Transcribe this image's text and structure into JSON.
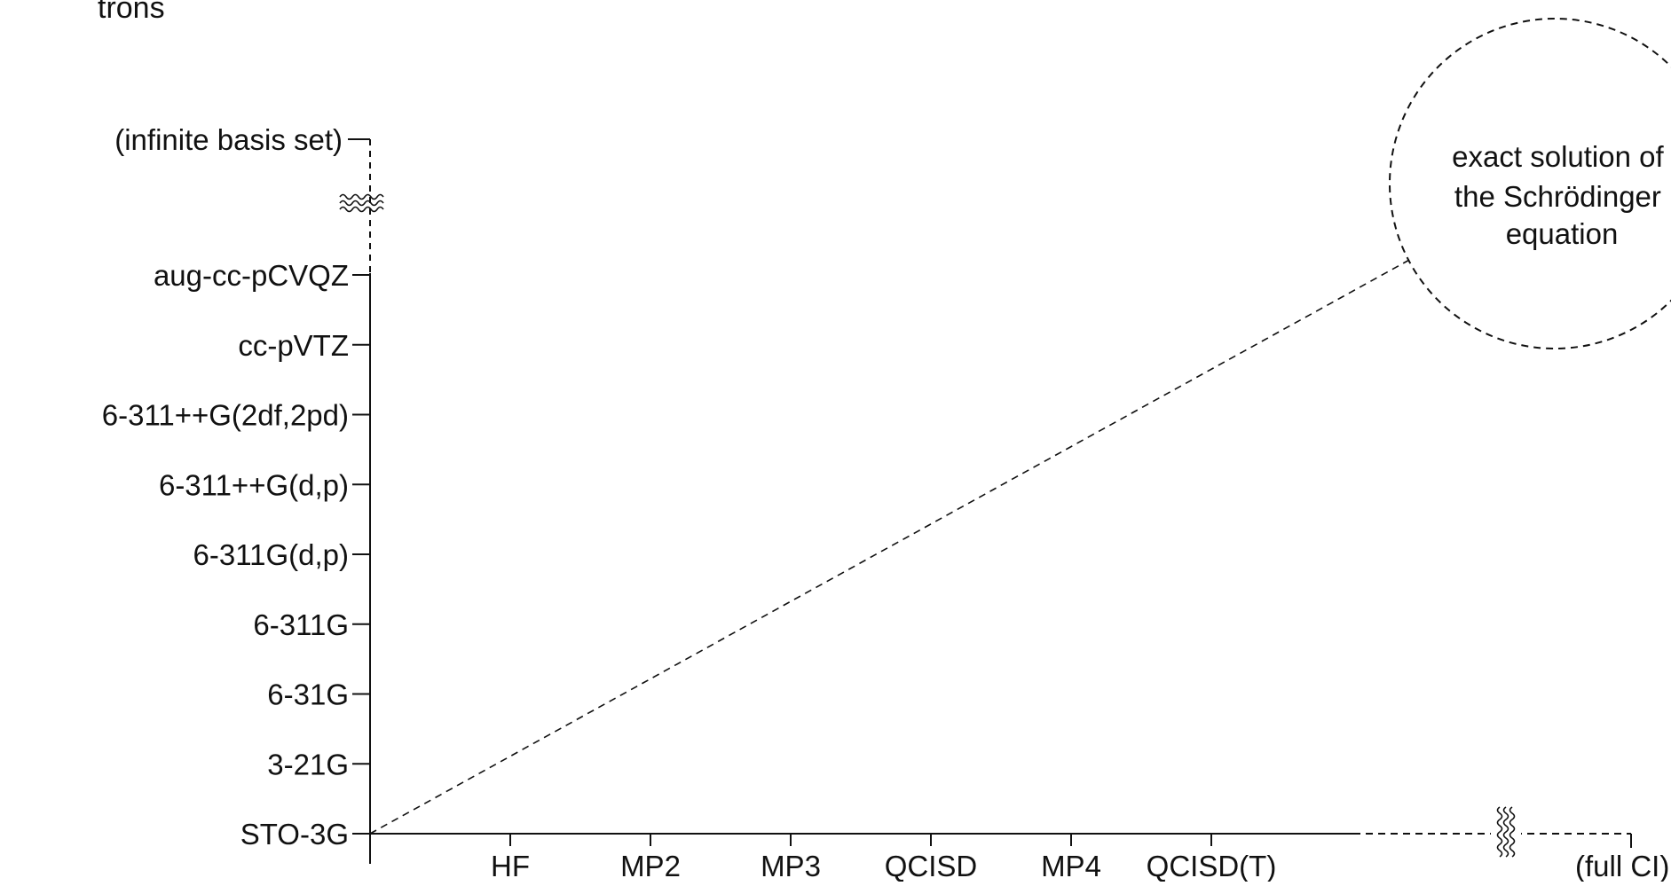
{
  "header": {
    "partial_text": "trons"
  },
  "y_axis": {
    "top_label": "(infinite basis set)",
    "labels": [
      "STO-3G",
      "3-21G",
      "6-31G",
      "6-311G",
      "6-311G(d,p)",
      "6-311++G(d,p)",
      "6-311++G(2df,2pd)",
      "cc-pVTZ",
      "aug-cc-pCVQZ"
    ]
  },
  "x_axis": {
    "labels": [
      "HF",
      "MP2",
      "MP3",
      "QCISD",
      "MP4",
      "QCISD(T)"
    ],
    "end_label": "(full CI)"
  },
  "target": {
    "lines": [
      "exact solution of",
      "the Schrödinger",
      "equation"
    ]
  },
  "colors": {
    "stroke": "#111111",
    "background": "#ffffff"
  }
}
